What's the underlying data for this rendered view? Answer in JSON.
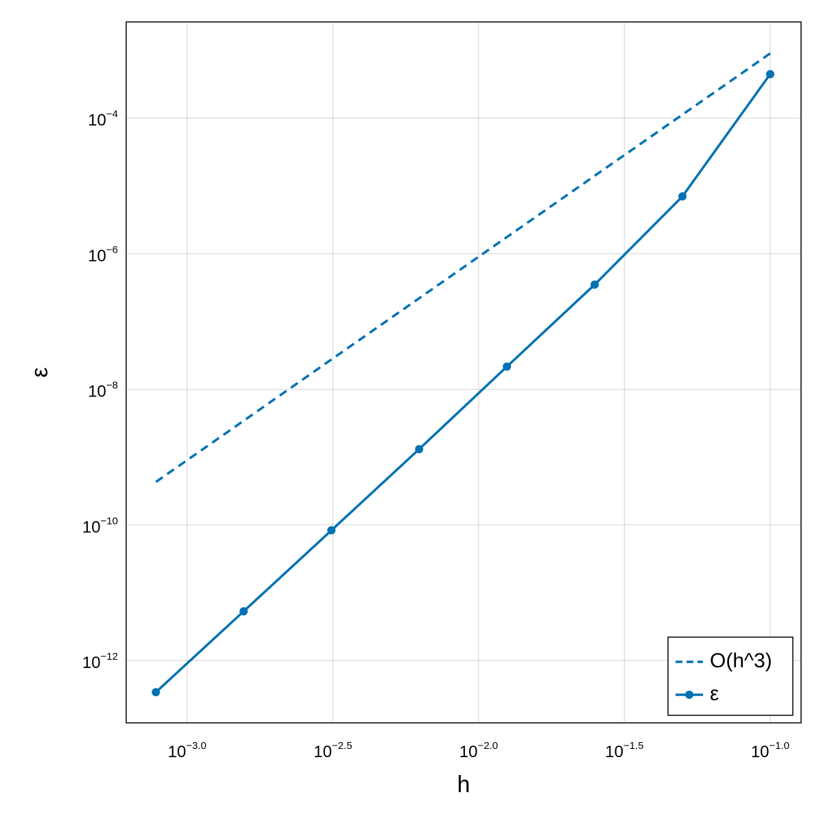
{
  "chart_data": {
    "type": "line",
    "xlabel": "h",
    "ylabel": "ε",
    "x": [
      0.1,
      0.05,
      0.025,
      0.0125,
      0.00625,
      0.003125,
      0.0015625,
      0.00078125
    ],
    "series": [
      {
        "name": "O(h^3)",
        "color": "#0072b2",
        "dashed": true,
        "markers": false,
        "values": [
          0.0009,
          0.0001125,
          1.41e-05,
          1.76e-06,
          2.2e-07,
          2.75e-08,
          3.43e-09,
          4.29e-10
        ]
      },
      {
        "name": "ε",
        "color": "#0072b2",
        "dashed": false,
        "markers": true,
        "values": [
          0.000445,
          7e-06,
          3.5e-07,
          2.16e-08,
          1.31e-09,
          8.3e-11,
          5.3e-12,
          3.4e-13
        ]
      }
    ],
    "xscale": "log",
    "yscale": "log",
    "xlim": [
      0.000618,
      0.1276
    ],
    "ylim": [
      1.2e-13,
      0.00262
    ],
    "xticks": [
      {
        "value": 0.001,
        "label": "10−3.0"
      },
      {
        "value": 0.0031623,
        "label": "10−2.5"
      },
      {
        "value": 0.01,
        "label": "10−2.0"
      },
      {
        "value": 0.031623,
        "label": "10−1.5"
      },
      {
        "value": 0.1,
        "label": "10−1.0"
      }
    ],
    "yticks": [
      {
        "value": 1e-12,
        "label": "10−12"
      },
      {
        "value": 1e-10,
        "label": "10−10"
      },
      {
        "value": 1e-08,
        "label": "10−8"
      },
      {
        "value": 1e-06,
        "label": "10−6"
      },
      {
        "value": 0.0001,
        "label": "10−4"
      }
    ],
    "grid": true,
    "legend": "bottom-right"
  }
}
